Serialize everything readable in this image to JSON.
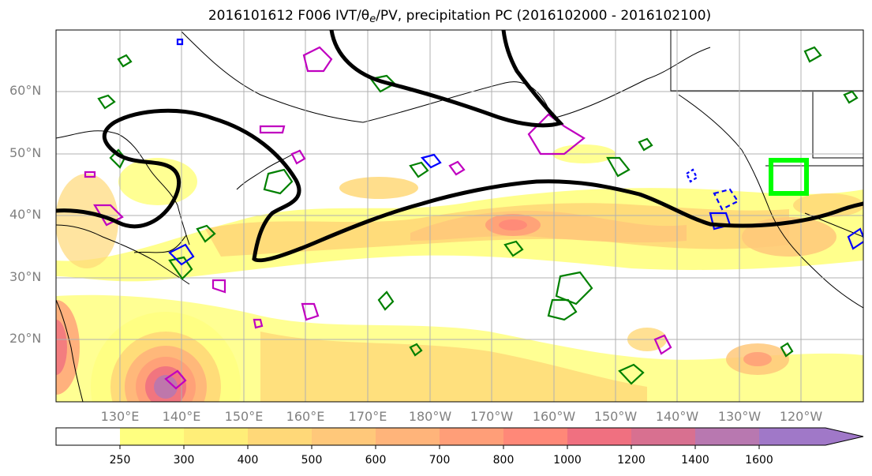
{
  "title": {
    "prefix": "2016101612 F006 IVT/",
    "theta": "θ",
    "theta_sub": "e",
    "suffix": "/PV, precipitation PC (2016102000 - 2016102100)"
  },
  "lat_labels": [
    "60°N",
    "50°N",
    "40°N",
    "30°N",
    "20°N"
  ],
  "lon_labels": [
    "130°E",
    "140°E",
    "150°E",
    "160°E",
    "170°E",
    "180°W",
    "170°W",
    "160°W",
    "150°W",
    "140°W",
    "130°W",
    "120°W"
  ],
  "colorbar": {
    "levels": [
      "250",
      "300",
      "400",
      "500",
      "600",
      "700",
      "800",
      "1000",
      "1200",
      "1400",
      "1600"
    ],
    "colors": [
      "#ffff80",
      "#ffee78",
      "#ffd878",
      "#ffc87a",
      "#ffb47a",
      "#ff9e78",
      "#ff8878",
      "#f07080",
      "#d87090",
      "#b878b0",
      "#a078c8"
    ],
    "extend": "max"
  },
  "colors": {
    "ivt_fill": "#ffd878",
    "pv_contour": "#000000",
    "theta_contour": "#008000",
    "pc_positive": "#c000c0",
    "pc_negative": "#0000ff",
    "target_box": "#00ff00",
    "grid": "#b0b0b0"
  }
}
